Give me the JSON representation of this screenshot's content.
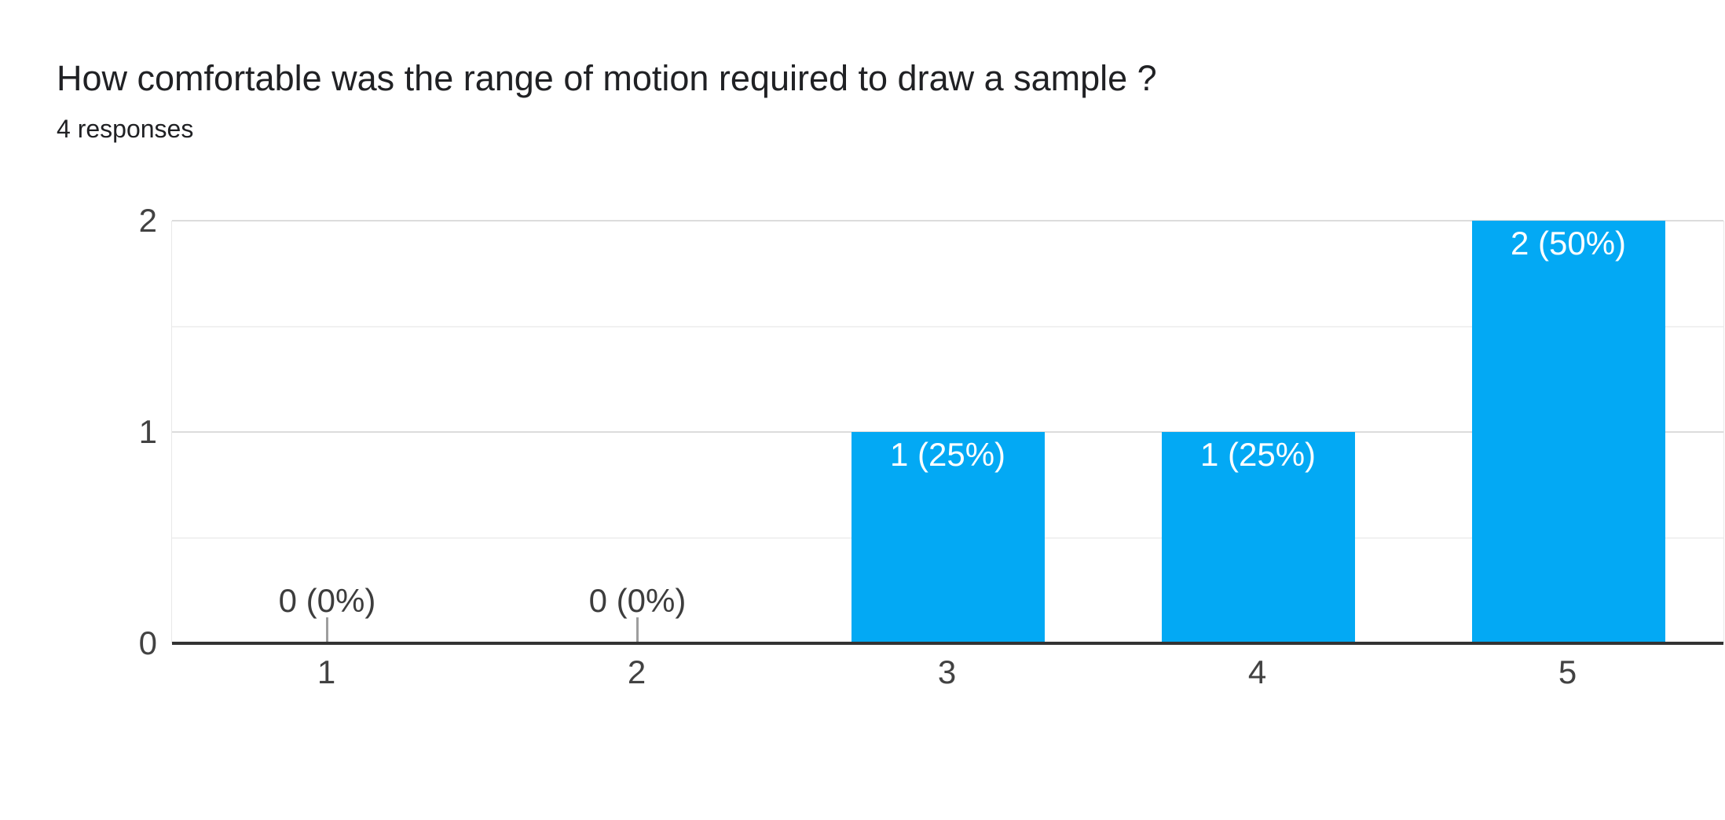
{
  "header": {
    "title": "How comfortable was the range of motion required to draw a sample ?",
    "subtitle": "4 responses"
  },
  "chart_data": {
    "type": "bar",
    "title": "How comfortable was the range of motion required to draw a sample ?",
    "subtitle": "4 responses",
    "categories": [
      "1",
      "2",
      "3",
      "4",
      "5"
    ],
    "values": [
      0,
      0,
      1,
      1,
      2
    ],
    "annotations": [
      "0 (0%)",
      "0 (0%)",
      "1 (25%)",
      "1 (25%)",
      "2 (50%)"
    ],
    "xlabel": "",
    "ylabel": "",
    "y_ticks": [
      0,
      1,
      2
    ],
    "y_minor_ticks": [
      0.5,
      1.5
    ],
    "ylim": [
      0,
      2
    ],
    "grid": true,
    "legend": "none",
    "colors": {
      "bar": "#03a9f4",
      "bar_label": "#ffffff",
      "annotation_text": "#3d3d3d",
      "axis_text": "#424242",
      "title_text": "#202124",
      "baseline": "#333333",
      "gridline_major": "#dcdcdc",
      "gridline_minor": "#f1f1f1",
      "stem": "#9e9e9e",
      "background": "#ffffff"
    }
  }
}
